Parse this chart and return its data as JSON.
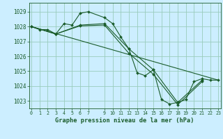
{
  "title": "Graphe pression niveau de la mer (hPa)",
  "bg_color": "#cceeff",
  "grid_color": "#99ccbb",
  "line_color": "#1a5c2a",
  "xlim": [
    -0.3,
    23.3
  ],
  "ylim": [
    1022.5,
    1029.6
  ],
  "yticks": [
    1023,
    1024,
    1025,
    1026,
    1027,
    1028,
    1029
  ],
  "xticks": [
    0,
    1,
    2,
    3,
    4,
    5,
    6,
    7,
    9,
    10,
    11,
    12,
    13,
    14,
    15,
    16,
    17,
    18,
    19,
    20,
    21,
    22,
    23
  ],
  "series": [
    {
      "x": [
        0,
        1,
        2,
        3,
        4,
        5,
        6,
        7,
        9,
        10,
        11,
        12,
        13,
        14,
        15,
        16,
        17,
        18,
        19,
        20,
        21,
        22,
        23
      ],
      "y": [
        1028.0,
        1027.8,
        1027.8,
        1027.5,
        1028.2,
        1028.1,
        1028.9,
        1029.0,
        1028.6,
        1028.2,
        1027.3,
        1026.5,
        1024.9,
        1024.7,
        1025.1,
        1023.1,
        1022.8,
        1022.9,
        1023.1,
        1024.3,
        1024.5,
        1024.4,
        1024.4
      ],
      "markers": true,
      "lw": 0.8
    },
    {
      "x": [
        0,
        3,
        6,
        9,
        12,
        15,
        18,
        21
      ],
      "y": [
        1028.0,
        1027.5,
        1028.1,
        1028.2,
        1026.5,
        1025.1,
        1022.9,
        1024.4
      ],
      "markers": true,
      "lw": 0.8
    },
    {
      "x": [
        0,
        3,
        6,
        9,
        12,
        15,
        18,
        21
      ],
      "y": [
        1028.0,
        1027.5,
        1028.05,
        1028.1,
        1026.2,
        1024.8,
        1022.75,
        1024.3
      ],
      "markers": true,
      "lw": 0.8
    },
    {
      "x": [
        0,
        23
      ],
      "y": [
        1028.0,
        1024.4
      ],
      "markers": false,
      "lw": 0.8
    }
  ]
}
